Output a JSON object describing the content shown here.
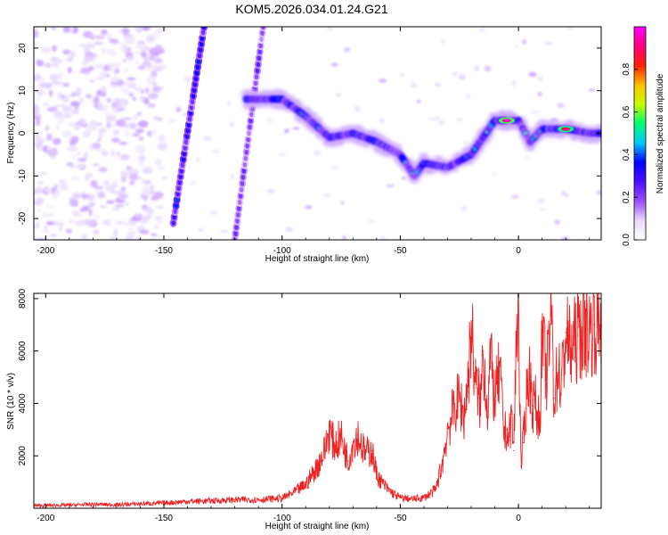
{
  "title": "KOM5.2026.034.01.24.G21",
  "colors": {
    "snr_line": "#ee2222",
    "axis": "#000000",
    "colormap": [
      "#ffffff",
      "#e8d8ff",
      "#9a4cff",
      "#4a10ff",
      "#0000ff",
      "#00c8ff",
      "#00ff70",
      "#c8ff00",
      "#ffc000",
      "#ff2000",
      "#ff0080",
      "#ff00ff"
    ]
  },
  "chart_data": [
    {
      "type": "heatmap",
      "name": "spectrogram",
      "xlabel": "Height of straight line (km)",
      "ylabel": "Frequency (Hz)",
      "xlim": [
        -205,
        35
      ],
      "ylim": [
        -25,
        25
      ],
      "xticks": [
        -200,
        -150,
        -100,
        -50,
        0
      ],
      "yticks": [
        -20,
        -10,
        0,
        10,
        20
      ],
      "colorbar": {
        "label": "Normalized spectral amplitude",
        "range": [
          0,
          1
        ],
        "ticks": [
          "0.0",
          "0.2",
          "0.4",
          "0.6",
          "0.8"
        ]
      },
      "features": [
        {
          "name": "left-noise-region",
          "x_range": [
            -205,
            -150
          ],
          "y_range": [
            -25,
            25
          ],
          "amplitude": 0.1
        },
        {
          "name": "diagonal-streak-1",
          "from": [
            -146,
            -21
          ],
          "to": [
            -133,
            25
          ],
          "amplitude": 0.3
        },
        {
          "name": "diagonal-streak-2",
          "from": [
            -120,
            -25
          ],
          "to": [
            -108,
            25
          ],
          "amplitude": 0.2
        },
        {
          "name": "signal-track",
          "amplitude": 0.65,
          "points": [
            [
              -115,
              8
            ],
            [
              -100,
              8
            ],
            [
              -90,
              4
            ],
            [
              -80,
              -1
            ],
            [
              -70,
              0
            ],
            [
              -60,
              -2
            ],
            [
              -50,
              -5
            ],
            [
              -44,
              -10
            ],
            [
              -40,
              -7
            ],
            [
              -30,
              -8
            ],
            [
              -20,
              -5
            ],
            [
              -10,
              3
            ],
            [
              0,
              3
            ],
            [
              5,
              -2
            ],
            [
              10,
              1
            ],
            [
              20,
              1
            ],
            [
              30,
              0
            ],
            [
              35,
              0
            ]
          ]
        },
        {
          "name": "peak-amplitude",
          "x": -5,
          "y": 3,
          "amplitude": 0.95
        },
        {
          "name": "secondary-peak",
          "x": 20,
          "y": 1,
          "amplitude": 0.9
        }
      ]
    },
    {
      "type": "line",
      "name": "snr",
      "xlabel": "Height of straight line (km)",
      "ylabel": "SNR (10 * v/v)",
      "xlim": [
        -205,
        35
      ],
      "ylim": [
        0,
        8200
      ],
      "xticks": [
        -200,
        -150,
        -100,
        -50,
        0
      ],
      "yticks": [
        2000,
        4000,
        6000,
        8000
      ],
      "series": [
        {
          "name": "SNR",
          "x": [
            -205,
            -190,
            -180,
            -170,
            -160,
            -150,
            -140,
            -130,
            -120,
            -110,
            -100,
            -95,
            -90,
            -85,
            -82,
            -80,
            -78,
            -75,
            -72,
            -70,
            -68,
            -65,
            -62,
            -60,
            -58,
            -55,
            -52,
            -50,
            -45,
            -40,
            -35,
            -32,
            -30,
            -27,
            -25,
            -23,
            -21,
            -20,
            -18,
            -16,
            -15,
            -13,
            -12,
            -10,
            -8,
            -6,
            -5,
            -4,
            -3,
            -2,
            -1,
            0,
            1,
            2,
            3,
            4,
            5,
            6,
            7,
            8,
            9,
            10,
            12,
            14,
            15,
            17,
            18,
            20,
            22,
            25,
            28,
            30,
            32,
            35
          ],
          "y": [
            100,
            120,
            150,
            130,
            170,
            200,
            260,
            280,
            320,
            330,
            380,
            600,
            900,
            1600,
            2200,
            3000,
            2400,
            2700,
            1800,
            2500,
            2800,
            2100,
            2200,
            1300,
            1000,
            700,
            500,
            400,
            350,
            400,
            700,
            1800,
            3000,
            3800,
            4200,
            3500,
            5200,
            6900,
            4600,
            4000,
            6000,
            3700,
            5800,
            4100,
            5200,
            2800,
            3000,
            2600,
            3600,
            2200,
            6000,
            8100,
            1600,
            2500,
            3800,
            4900,
            5000,
            3900,
            4100,
            3500,
            3400,
            6400,
            5000,
            7600,
            4200,
            5500,
            4500,
            6700,
            6000,
            6600,
            6900,
            6800,
            7000,
            7000
          ]
        }
      ]
    }
  ]
}
